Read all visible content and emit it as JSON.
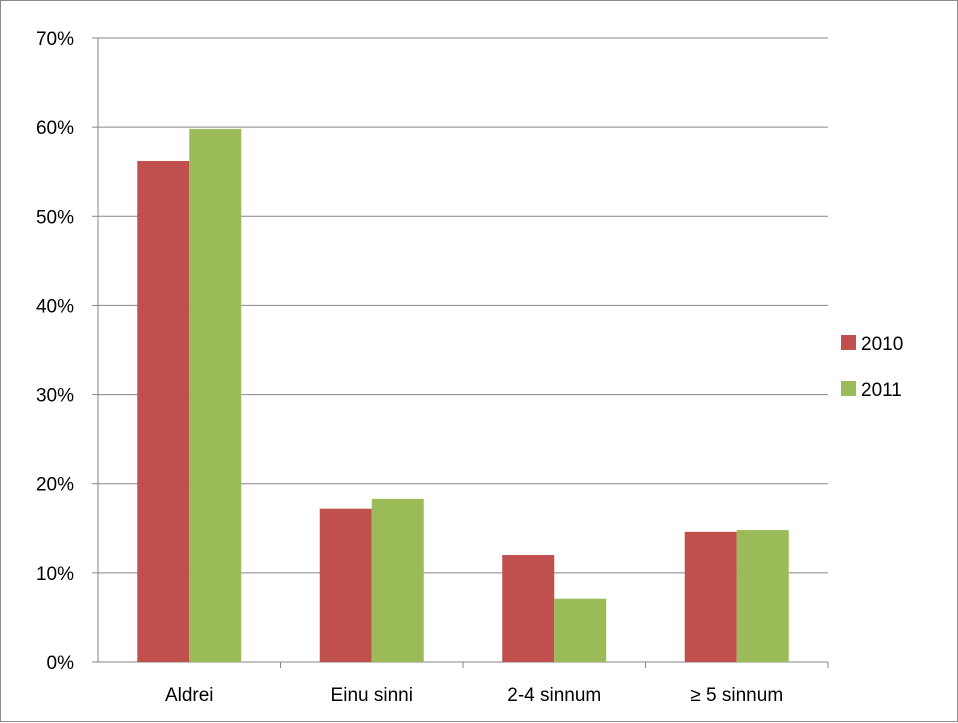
{
  "chart_data": {
    "type": "bar",
    "categories": [
      "Aldrei",
      "Einu sinni",
      "2-4 sinnum",
      "≥ 5 sinnum"
    ],
    "series": [
      {
        "name": "2010",
        "color": "#c0504d",
        "values": [
          56.2,
          17.2,
          12.0,
          14.6
        ]
      },
      {
        "name": "2011",
        "color": "#9bbb59",
        "values": [
          59.8,
          18.3,
          7.1,
          14.8
        ]
      }
    ],
    "y_ticks": [
      "0%",
      "10%",
      "20%",
      "30%",
      "40%",
      "50%",
      "60%",
      "70%"
    ],
    "ylim": [
      0,
      70
    ],
    "grid": true,
    "legend_position": "right"
  }
}
